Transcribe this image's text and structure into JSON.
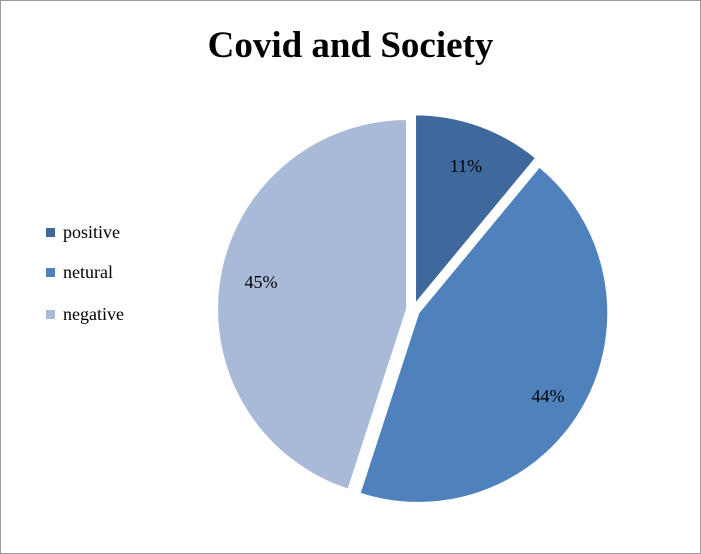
{
  "chart_data": {
    "type": "pie",
    "title": "Covid and Society",
    "categories": [
      "positive",
      "netural",
      "negative"
    ],
    "values": [
      11,
      44,
      45
    ],
    "labels": [
      "11%",
      "44%",
      "45%"
    ],
    "colors": [
      "#3f689d",
      "#4f81bd",
      "#a9bad9"
    ],
    "legend_position": "left",
    "exploded": true
  }
}
